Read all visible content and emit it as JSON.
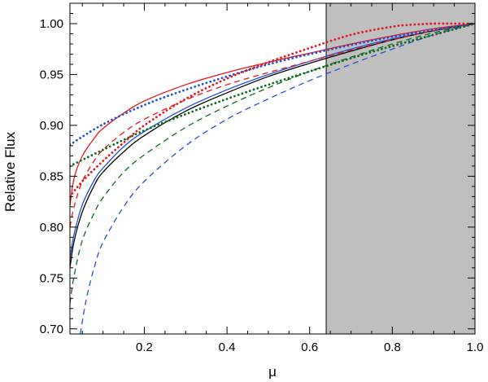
{
  "chart_data": {
    "type": "line",
    "xlabel": "μ",
    "ylabel": "Relative Flux",
    "xlim": [
      0.02,
      1.0
    ],
    "ylim": [
      0.695,
      1.02
    ],
    "shaded_region": {
      "x_from": 0.64,
      "x_to": 1.0,
      "color": "#bfbfbf"
    },
    "xticks": [
      0.2,
      0.4,
      0.6,
      0.8,
      1.0
    ],
    "xtick_labels": [
      "0.2",
      "0.4",
      "0.6",
      "0.8",
      "1.0"
    ],
    "yticks": [
      0.7,
      0.75,
      0.8,
      0.85,
      0.9,
      0.95,
      1.0
    ],
    "ytick_labels": [
      "0.70",
      "0.75",
      "0.80",
      "0.85",
      "0.90",
      "0.95",
      "1.00"
    ],
    "colors": {
      "red": "#e8141c",
      "blue": "#1f50d8",
      "green": "#0b6b1a",
      "black": "#000000"
    },
    "series": [
      {
        "color": "#e8141c",
        "style": "solid",
        "x": [
          0.02,
          0.03,
          0.05,
          0.08,
          0.1,
          0.15,
          0.2,
          0.3,
          0.4,
          0.5,
          0.6,
          0.7,
          0.8,
          0.9,
          1.0
        ],
        "y": [
          0.821,
          0.848,
          0.87,
          0.888,
          0.897,
          0.912,
          0.924,
          0.94,
          0.952,
          0.962,
          0.971,
          0.98,
          0.988,
          0.995,
          1.0
        ]
      },
      {
        "color": "#1f50d8",
        "style": "solid",
        "x": [
          0.02,
          0.03,
          0.05,
          0.08,
          0.1,
          0.15,
          0.2,
          0.3,
          0.4,
          0.5,
          0.6,
          0.7,
          0.8,
          0.9,
          1.0
        ],
        "y": [
          0.77,
          0.793,
          0.822,
          0.847,
          0.858,
          0.879,
          0.894,
          0.917,
          0.935,
          0.95,
          0.963,
          0.975,
          0.985,
          0.993,
          1.0
        ]
      },
      {
        "color": "#000000",
        "style": "solid",
        "x": [
          0.02,
          0.03,
          0.05,
          0.08,
          0.1,
          0.15,
          0.2,
          0.3,
          0.4,
          0.5,
          0.6,
          0.7,
          0.8,
          0.9,
          1.0
        ],
        "y": [
          0.76,
          0.786,
          0.815,
          0.842,
          0.854,
          0.874,
          0.89,
          0.914,
          0.932,
          0.948,
          0.961,
          0.973,
          0.984,
          0.993,
          1.0
        ]
      },
      {
        "color": "#e8141c",
        "style": "dashed",
        "x": [
          0.02,
          0.03,
          0.05,
          0.08,
          0.1,
          0.15,
          0.2,
          0.3,
          0.4,
          0.5,
          0.6,
          0.7,
          0.8,
          0.9,
          1.0
        ],
        "y": [
          0.8,
          0.82,
          0.845,
          0.866,
          0.876,
          0.893,
          0.906,
          0.925,
          0.94,
          0.952,
          0.963,
          0.974,
          0.984,
          0.993,
          1.0
        ]
      },
      {
        "color": "#0b6b1a",
        "style": "dashed",
        "x": [
          0.02,
          0.03,
          0.05,
          0.08,
          0.1,
          0.15,
          0.2,
          0.3,
          0.4,
          0.5,
          0.6,
          0.7,
          0.8,
          0.9,
          1.0
        ],
        "y": [
          0.725,
          0.752,
          0.787,
          0.815,
          0.829,
          0.854,
          0.871,
          0.898,
          0.919,
          0.937,
          0.953,
          0.967,
          0.98,
          0.991,
          1.0
        ]
      },
      {
        "color": "#1f50d8",
        "style": "dashed",
        "x": [
          0.045,
          0.06,
          0.08,
          0.1,
          0.15,
          0.2,
          0.3,
          0.4,
          0.5,
          0.6,
          0.7,
          0.8,
          0.9,
          1.0
        ],
        "y": [
          0.695,
          0.73,
          0.762,
          0.785,
          0.82,
          0.845,
          0.88,
          0.906,
          0.926,
          0.944,
          0.96,
          0.975,
          0.989,
          1.0
        ]
      },
      {
        "color": "#1f50d8",
        "style": "dotted",
        "x": [
          0.02,
          0.1,
          0.2,
          0.3,
          0.4,
          0.5,
          0.6,
          0.7,
          0.8,
          0.9,
          1.0
        ],
        "y": [
          0.881,
          0.901,
          0.92,
          0.935,
          0.948,
          0.96,
          0.97,
          0.979,
          0.987,
          0.994,
          1.0
        ]
      },
      {
        "color": "#0b6b1a",
        "style": "dotted",
        "x": [
          0.02,
          0.1,
          0.2,
          0.3,
          0.4,
          0.5,
          0.6,
          0.7,
          0.8,
          0.9,
          1.0
        ],
        "y": [
          0.86,
          0.876,
          0.895,
          0.911,
          0.926,
          0.94,
          0.953,
          0.966,
          0.978,
          0.989,
          1.0
        ]
      },
      {
        "color": "#e8141c",
        "style": "dotted",
        "x": [
          0.02,
          0.05,
          0.1,
          0.15,
          0.2,
          0.3,
          0.4,
          0.5,
          0.6,
          0.7,
          0.8,
          0.85,
          0.9,
          0.95,
          1.0
        ],
        "y": [
          0.83,
          0.845,
          0.865,
          0.883,
          0.9,
          0.926,
          0.946,
          0.962,
          0.976,
          0.989,
          0.997,
          0.999,
          1.0,
          1.0,
          1.0
        ]
      }
    ]
  }
}
